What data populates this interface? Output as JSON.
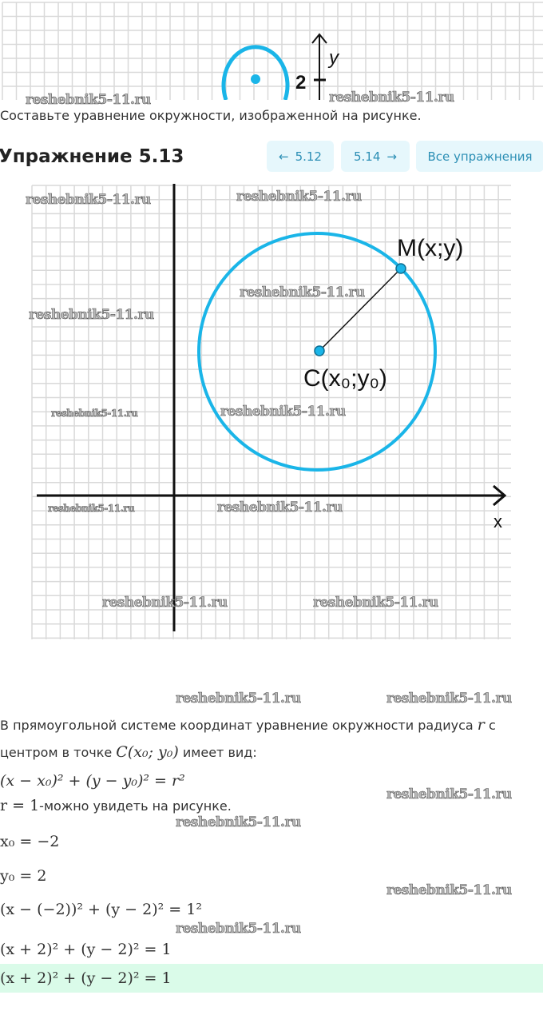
{
  "top_figure": {
    "y_label": "y",
    "tick_label": "2"
  },
  "task_text": "Составьте уравнение окружности, изображенной на рисунке.",
  "header": {
    "title": "Упражнение 5.13",
    "prev_label": "5.12",
    "next_label": "5.14",
    "all_label": "Все упражнения"
  },
  "figure": {
    "point_m": "M(x;y)",
    "point_c": "C(x₀;y₀)",
    "x_label": "x",
    "y_label": "y",
    "circle_color": "#1ab5e8"
  },
  "watermark": "reshebnik5-11.ru",
  "solution": {
    "intro_1": "В прямоугольной системе координат уравнение окружности радиуса",
    "intro_1_var": "r",
    "intro_1_end": "с",
    "intro_2": "центром в точке",
    "intro_2_math": "C(x₀; y₀)",
    "intro_2_end": "имеет вид:",
    "general_eq": "(x − x₀)² + (y − y₀)² = r²",
    "r_math": "r = 1",
    "r_text": "-можно увидеть на рисунке.",
    "x0": "x₀ = −2",
    "y0": "y₀ = 2",
    "sub_eq": "(x − (−2))² + (y − 2)² = 1²",
    "simplified": "(x + 2)² + (y − 2)² = 1",
    "answer": "(x + 2)² + (y − 2)² = 1"
  },
  "colors": {
    "accent": "#1ab5e8",
    "button_bg": "#e6f7fc",
    "button_text": "#2c8fb5",
    "answer_bg": "#dafbe9"
  }
}
